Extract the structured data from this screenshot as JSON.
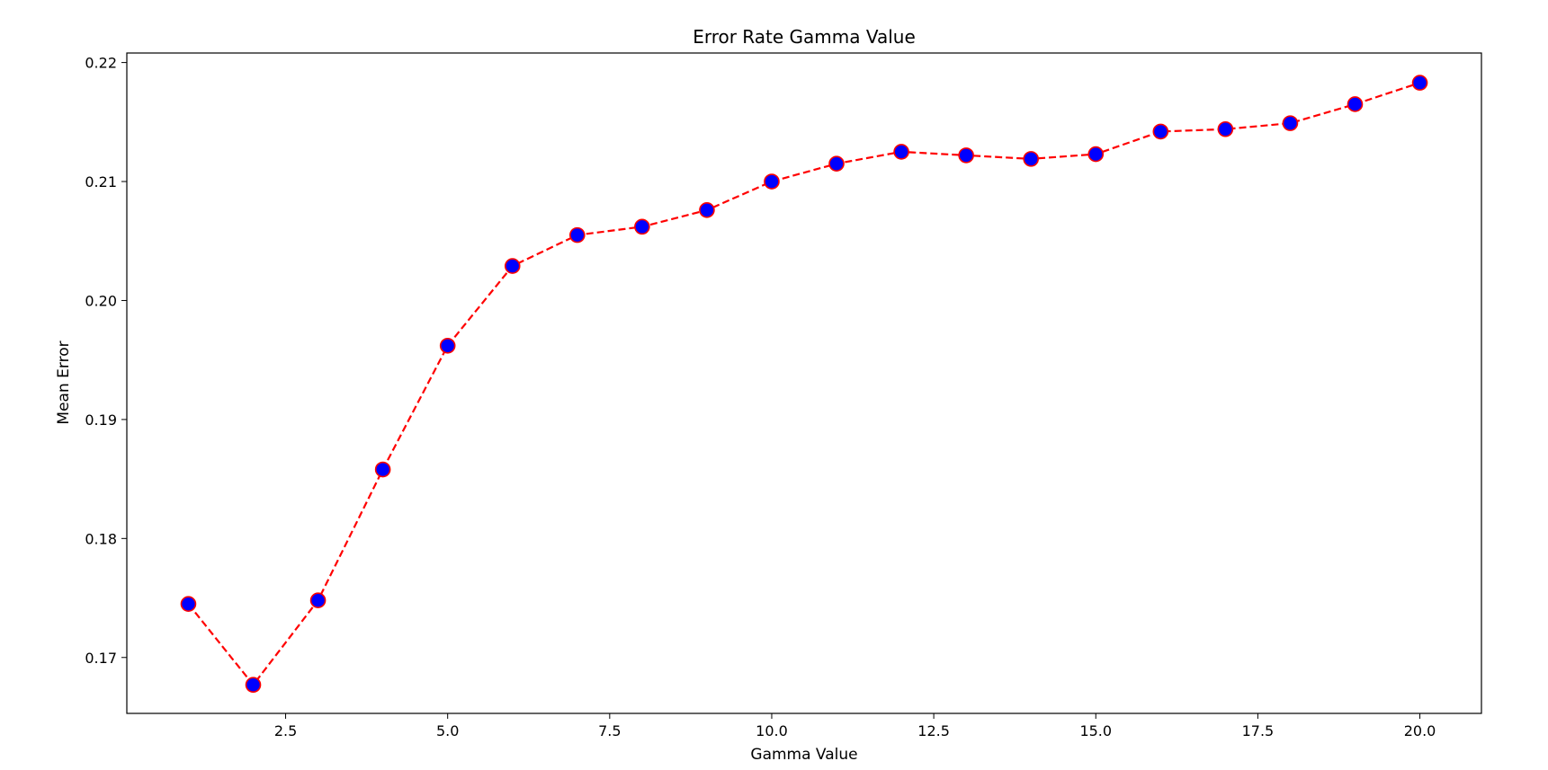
{
  "chart_data": {
    "type": "line",
    "title": "Error Rate Gamma Value",
    "xlabel": "Gamma Value",
    "ylabel": "Mean Error",
    "xlim": [
      0.05,
      20.95
    ],
    "ylim": [
      0.1653,
      0.2208
    ],
    "x_ticks": [
      2.5,
      5.0,
      7.5,
      10.0,
      12.5,
      15.0,
      17.5,
      20.0
    ],
    "y_ticks": [
      0.17,
      0.18,
      0.19,
      0.2,
      0.21,
      0.22
    ],
    "x_tick_labels": [
      "2.5",
      "5.0",
      "7.5",
      "10.0",
      "12.5",
      "15.0",
      "17.5",
      "20.0"
    ],
    "y_tick_labels": [
      "0.17",
      "0.18",
      "0.19",
      "0.20",
      "0.21",
      "0.22"
    ],
    "grid": false,
    "series": [
      {
        "x": [
          1,
          2,
          3,
          4,
          5,
          6,
          7,
          8,
          9,
          10,
          11,
          12,
          13,
          14,
          15,
          16,
          17,
          18,
          19,
          20
        ],
        "values": [
          0.1745,
          0.1677,
          0.1748,
          0.1858,
          0.1962,
          0.2029,
          0.2055,
          0.2062,
          0.2076,
          0.21,
          0.2115,
          0.2125,
          0.2122,
          0.2119,
          0.2123,
          0.2142,
          0.2144,
          0.2149,
          0.2165,
          0.2183
        ],
        "line_color": "#ff0000",
        "line_style": "dashed",
        "marker_face_color": "#0000ff",
        "marker_edge_color": "#ff0000"
      }
    ]
  }
}
